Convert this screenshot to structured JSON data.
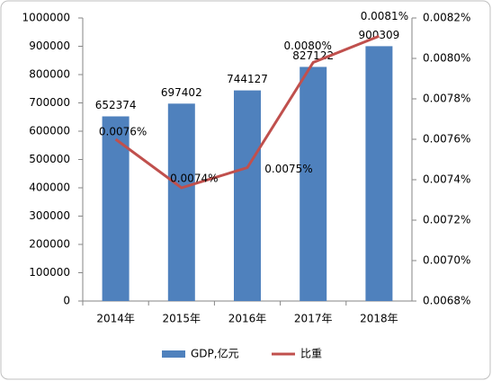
{
  "chart_data": {
    "type": "bar-line",
    "categories": [
      "2014年",
      "2015年",
      "2016年",
      "2017年",
      "2018年"
    ],
    "series": [
      {
        "name": "GDP,亿元",
        "type": "bar",
        "color": "#4f81bd",
        "values": [
          652374,
          697402,
          744127,
          827122,
          900309
        ]
      },
      {
        "name": "比重",
        "type": "line",
        "axis": "y2",
        "color": "#c0504d",
        "values": [
          0.0076,
          0.00736,
          0.00746,
          0.00798,
          0.00811
        ],
        "value_labels": [
          "0.0076%",
          "0.0074%",
          "0.0075%",
          "0.0080%",
          "0.0081%"
        ]
      }
    ],
    "ylim": [
      0,
      1000000
    ],
    "yticks": [
      0,
      100000,
      200000,
      300000,
      400000,
      500000,
      600000,
      700000,
      800000,
      900000,
      1000000
    ],
    "y2lim": [
      0.0068,
      0.0082
    ],
    "y2ticks": [
      {
        "value": 0.0068,
        "label": "0.0068%"
      },
      {
        "value": 0.007,
        "label": "0.0070%"
      },
      {
        "value": 0.0072,
        "label": "0.0072%"
      },
      {
        "value": 0.0074,
        "label": "0.0074%"
      },
      {
        "value": 0.0076,
        "label": "0.0076%"
      },
      {
        "value": 0.0078,
        "label": "0.0078%"
      },
      {
        "value": 0.008,
        "label": "0.0080%"
      },
      {
        "value": 0.0082,
        "label": "0.0082%"
      }
    ],
    "grid": false,
    "legend": "bottom"
  }
}
